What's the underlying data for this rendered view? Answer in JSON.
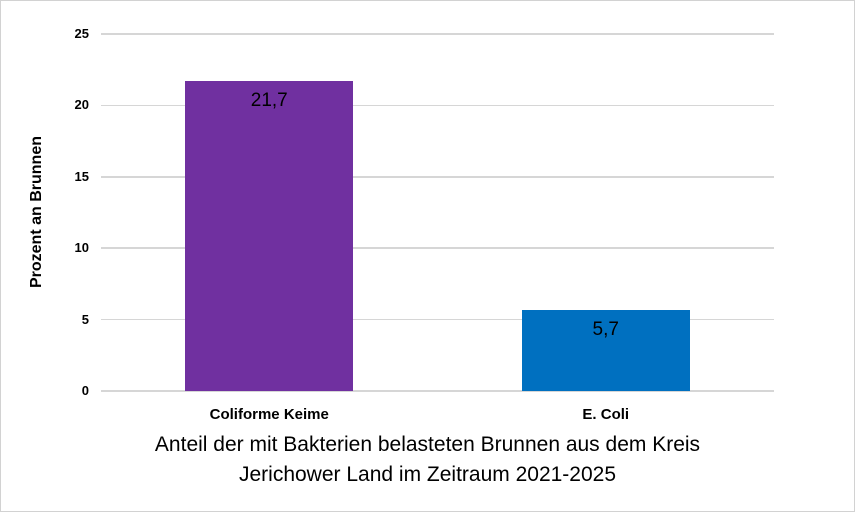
{
  "figure": {
    "background": "#ffffff",
    "border_color": "#d2d2d2"
  },
  "chart_data": {
    "type": "bar",
    "title": "Anteil der mit Bakterien belasteten Brunnen aus dem Kreis Jerichower Land im Zeitraum 2021-2025",
    "title_lines": [
      "Anteil der mit Bakterien belasteten Brunnen aus dem Kreis",
      "Jerichower Land im Zeitraum 2021-2025"
    ],
    "categories": [
      "Coliforme Keime",
      "E. Coli"
    ],
    "values": [
      21.7,
      5.7
    ],
    "value_labels": [
      "21,7",
      "5,7"
    ],
    "bar_colors": [
      "#7030a0",
      "#0070c0"
    ],
    "xlabel": "",
    "ylabel": "Prozent an Brunnen",
    "yticks": [
      0,
      5,
      10,
      15,
      20,
      25
    ],
    "ytick_labels": [
      "0",
      "5",
      "10",
      "15",
      "20",
      "25"
    ],
    "ylim": [
      0,
      25
    ],
    "grid": "horizontal",
    "gridline_color": "#d6d6d6",
    "legend_position": "none",
    "text_color": "#000000"
  }
}
